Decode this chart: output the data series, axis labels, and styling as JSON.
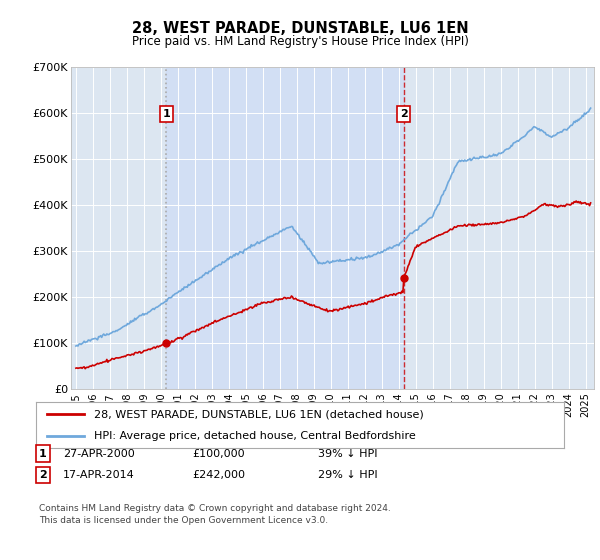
{
  "title": "28, WEST PARADE, DUNSTABLE, LU6 1EN",
  "subtitle": "Price paid vs. HM Land Registry's House Price Index (HPI)",
  "legend_line1": "28, WEST PARADE, DUNSTABLE, LU6 1EN (detached house)",
  "legend_line2": "HPI: Average price, detached house, Central Bedfordshire",
  "footer": "Contains HM Land Registry data © Crown copyright and database right 2024.\nThis data is licensed under the Open Government Licence v3.0.",
  "annotation1": {
    "label": "1",
    "date_x": 2000.32,
    "price": 100000,
    "text_date": "27-APR-2000",
    "text_price": "£100,000",
    "text_pct": "39% ↓ HPI"
  },
  "annotation2": {
    "label": "2",
    "date_x": 2014.29,
    "price": 242000,
    "text_date": "17-APR-2014",
    "text_price": "£242,000",
    "text_pct": "29% ↓ HPI"
  },
  "hpi_color": "#6fa8dc",
  "price_color": "#cc0000",
  "dashed_line1_color": "#999999",
  "dashed_line2_color": "#cc0000",
  "plot_bg_color": "#dce6f1",
  "shaded_fill_color": "#c9daf8",
  "ylim": [
    0,
    700000
  ],
  "xlim": [
    1994.7,
    2025.5
  ],
  "yticks": [
    0,
    100000,
    200000,
    300000,
    400000,
    500000,
    600000,
    700000
  ],
  "ytick_labels": [
    "£0",
    "£100K",
    "£200K",
    "£300K",
    "£400K",
    "£500K",
    "£600K",
    "£700K"
  ],
  "xticks": [
    1995,
    1996,
    1997,
    1998,
    1999,
    2000,
    2001,
    2002,
    2003,
    2004,
    2005,
    2006,
    2007,
    2008,
    2009,
    2010,
    2011,
    2012,
    2013,
    2014,
    2015,
    2016,
    2017,
    2018,
    2019,
    2020,
    2021,
    2022,
    2023,
    2024,
    2025
  ]
}
